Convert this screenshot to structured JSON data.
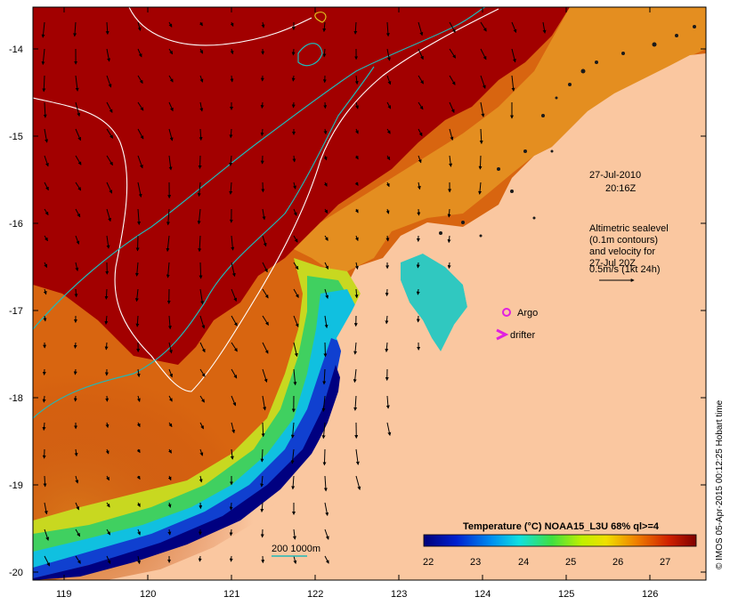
{
  "map": {
    "lat_labels": [
      "-14",
      "-15",
      "-16",
      "-17",
      "-18",
      "-19",
      "-20"
    ],
    "lon_labels": [
      "119",
      "120",
      "121",
      "122",
      "123",
      "124",
      "125",
      "126"
    ],
    "timestamp_date": "27-Jul-2010",
    "timestamp_time": "20:16Z",
    "legend_lines": [
      "Altimetric sealevel",
      "(0.1m contours)",
      "and velocity for",
      "27-Jul 20Z",
      "0.5m/s (1kt 24h)"
    ],
    "argo_label": "Argo",
    "drifter_label": "drifter",
    "depth_label": "200  1000m",
    "colorbar_title": "Temperature (°C) NOAA15_L3U 68% ql>=4",
    "colorbar_ticks": [
      "22",
      "23",
      "24",
      "25",
      "26",
      "27"
    ],
    "credit": "© IMOS 05-Apr-2015 00:12:25 Hobart time",
    "colors": {
      "land": "#fac7a0",
      "sst_hot": "#a40000",
      "sst_orange": "#d25a0a",
      "sst_yellow": "#e8c000",
      "sst_green": "#30d050",
      "sst_cyan": "#10c8e0",
      "sst_blue": "#0820a0",
      "contour_white": "#ffffff",
      "contour_cyan": "#20c0c0",
      "marker_magenta": "#e020e0"
    }
  }
}
